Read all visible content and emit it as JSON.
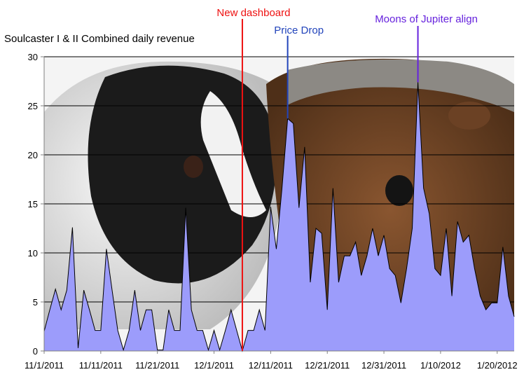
{
  "chart_data": {
    "type": "area",
    "title": "Soulcaster I & II Combined daily revenue",
    "xlabel": "",
    "ylabel": "",
    "ylim": [
      0,
      30
    ],
    "yticks": [
      0,
      5,
      10,
      15,
      20,
      25,
      30
    ],
    "x_start": "11/1/2011",
    "x_end": "1/24/2012",
    "xticks": [
      "11/1/2011",
      "11/11/2011",
      "11/21/2011",
      "12/1/2011",
      "12/11/2011",
      "12/21/2011",
      "12/31/2011",
      "1/10/2012",
      "1/20/2012"
    ],
    "grid": true,
    "fill_color": "#9c9cfb",
    "outline_color": "#000000",
    "series": [
      {
        "values": [
          2,
          4.2,
          6.3,
          4.2,
          6.2,
          12.6,
          0.3,
          6.2,
          4.2,
          2.1,
          2.1,
          10.4,
          6.2,
          2.1,
          0.1,
          2.1,
          6.2,
          2.1,
          4.2,
          4.2,
          0.1,
          0.1,
          4.2,
          2.1,
          2.1,
          14.6,
          4.2,
          2.1,
          2.1,
          0.1,
          2.1,
          0.1,
          2.1,
          4.2,
          2.1,
          0,
          2.1,
          2.1,
          4.2,
          2.1,
          14.7,
          10.4,
          16.6,
          23.7,
          23.2,
          14.6,
          20.8,
          7,
          12.5,
          12,
          4.2,
          16.6,
          7,
          9.7,
          9.7,
          11.1,
          7.7,
          9.7,
          12.5,
          9.7,
          11.8,
          8.4,
          7.7,
          4.9,
          8.4,
          12.5,
          27.4,
          16.6,
          14,
          8.4,
          7.7,
          12.5,
          5.6,
          13.2,
          11.1,
          11.8,
          8.4,
          5.6,
          4.2,
          4.9,
          4.9,
          10.6,
          5.6,
          3.5
        ]
      }
    ],
    "annotations": [
      {
        "label": "New dashboard",
        "x_index": 35,
        "color": "#ee1111"
      },
      {
        "label": "Price Drop",
        "x_index": 43,
        "color": "#2244bb"
      },
      {
        "label": "Moons of Jupiter align",
        "x_index": 66,
        "color": "#6622dd"
      }
    ],
    "background": {
      "description": "photograph of two guinea pigs",
      "colors": {
        "pig_left_white": "#e8e8e8",
        "pig_left_black": "#1a1a1a",
        "pig_right_brown": "#7a4a28",
        "pig_right_grey": "#8a8680"
      }
    }
  }
}
